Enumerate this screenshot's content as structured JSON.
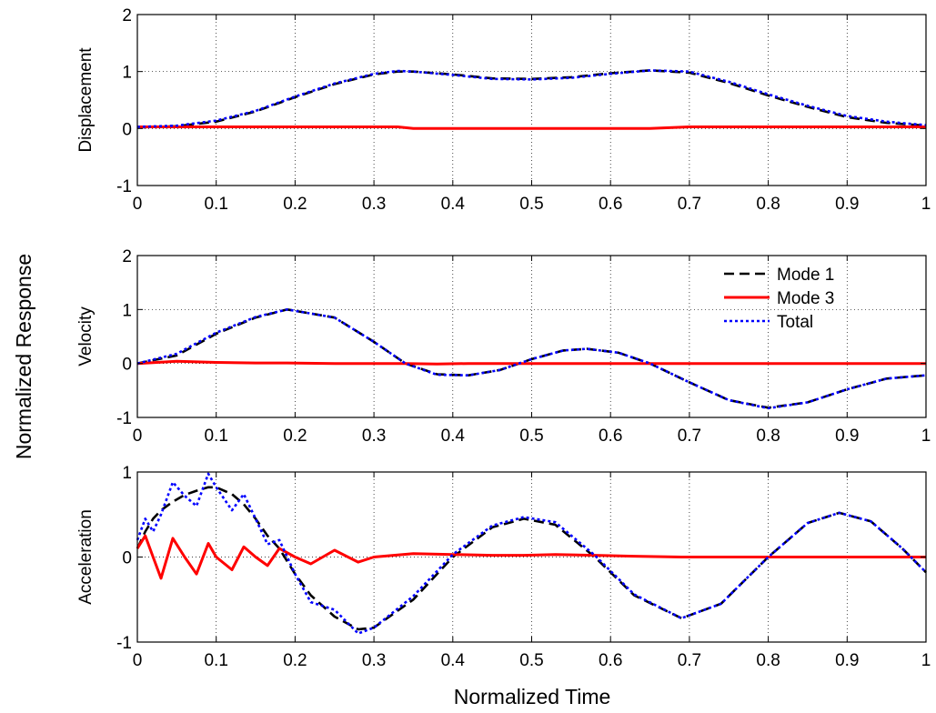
{
  "figure": {
    "ylabel": "Normalized Response",
    "xlabel": "Normalized Time"
  },
  "legend": {
    "location": "top-right of Velocity panel",
    "entries": [
      {
        "label": "Mode 1",
        "color": "#000000",
        "style": "dashed"
      },
      {
        "label": "Mode 3",
        "color": "#ff0000",
        "style": "solid"
      },
      {
        "label": "Total",
        "color": "#0000ff",
        "style": "dotted"
      }
    ]
  },
  "chart_data": [
    {
      "type": "line",
      "ylabel": "Displacement",
      "xlim": [
        0,
        1
      ],
      "ylim": [
        -1,
        2
      ],
      "xticks": [
        "0",
        "0.1",
        "0.2",
        "0.3",
        "0.4",
        "0.5",
        "0.6",
        "0.7",
        "0.8",
        "0.9",
        "1"
      ],
      "yticks": [
        "-1",
        "0",
        "1",
        "2"
      ],
      "grid": true,
      "x": [
        0,
        0.05,
        0.1,
        0.15,
        0.2,
        0.25,
        0.3,
        0.33,
        0.35,
        0.4,
        0.45,
        0.5,
        0.55,
        0.6,
        0.65,
        0.7,
        0.75,
        0.8,
        0.85,
        0.9,
        0.95,
        1
      ],
      "series": [
        {
          "name": "Mode 1",
          "color": "#000000",
          "style": "dashed",
          "values": [
            0.02,
            0.04,
            0.12,
            0.3,
            0.55,
            0.78,
            0.95,
            1.0,
            1.0,
            0.95,
            0.88,
            0.87,
            0.9,
            0.97,
            1.02,
            0.98,
            0.8,
            0.58,
            0.38,
            0.2,
            0.1,
            0.05
          ]
        },
        {
          "name": "Mode 3",
          "color": "#ff0000",
          "style": "solid",
          "values": [
            0.03,
            0.03,
            0.03,
            0.03,
            0.03,
            0.03,
            0.03,
            0.03,
            0.0,
            0.0,
            0.0,
            0.0,
            0.0,
            0.0,
            0.0,
            0.03,
            0.03,
            0.03,
            0.03,
            0.03,
            0.03,
            0.03
          ]
        },
        {
          "name": "Total",
          "color": "#0000ff",
          "style": "dotted",
          "values": [
            0.03,
            0.05,
            0.14,
            0.31,
            0.56,
            0.79,
            0.96,
            1.01,
            1.0,
            0.94,
            0.87,
            0.86,
            0.89,
            0.96,
            1.02,
            1.0,
            0.82,
            0.6,
            0.4,
            0.22,
            0.12,
            0.06
          ]
        }
      ]
    },
    {
      "type": "line",
      "ylabel": "Velocity",
      "xlim": [
        0,
        1
      ],
      "ylim": [
        -1,
        2
      ],
      "xticks": [
        "0",
        "0.1",
        "0.2",
        "0.3",
        "0.4",
        "0.5",
        "0.6",
        "0.7",
        "0.8",
        "0.9",
        "1"
      ],
      "yticks": [
        "-1",
        "0",
        "1",
        "2"
      ],
      "grid": true,
      "x": [
        0,
        0.05,
        0.1,
        0.15,
        0.19,
        0.25,
        0.3,
        0.34,
        0.38,
        0.42,
        0.46,
        0.5,
        0.54,
        0.57,
        0.61,
        0.65,
        0.7,
        0.75,
        0.8,
        0.85,
        0.9,
        0.95,
        1
      ],
      "series": [
        {
          "name": "Mode 1",
          "color": "#000000",
          "style": "dashed",
          "values": [
            0.0,
            0.15,
            0.55,
            0.85,
            1.0,
            0.85,
            0.4,
            0.0,
            -0.2,
            -0.22,
            -0.12,
            0.08,
            0.24,
            0.27,
            0.2,
            0.0,
            -0.35,
            -0.68,
            -0.82,
            -0.72,
            -0.48,
            -0.28,
            -0.22
          ]
        },
        {
          "name": "Mode 3",
          "color": "#ff0000",
          "style": "solid",
          "values": [
            0.0,
            0.04,
            0.02,
            0.01,
            0.01,
            0.0,
            0.0,
            0.0,
            -0.01,
            0.0,
            0.0,
            0.0,
            0.0,
            0.0,
            0.0,
            0.0,
            0.0,
            0.0,
            0.0,
            0.0,
            0.0,
            0.0,
            0.0
          ]
        },
        {
          "name": "Total",
          "color": "#0000ff",
          "style": "dotted",
          "values": [
            0.0,
            0.18,
            0.57,
            0.86,
            1.0,
            0.85,
            0.4,
            0.0,
            -0.21,
            -0.22,
            -0.12,
            0.08,
            0.24,
            0.27,
            0.2,
            0.0,
            -0.35,
            -0.68,
            -0.83,
            -0.72,
            -0.48,
            -0.28,
            -0.22
          ]
        }
      ]
    },
    {
      "type": "line",
      "ylabel": "Acceleration",
      "xlim": [
        0,
        1
      ],
      "ylim": [
        -1,
        1
      ],
      "xticks": [
        "0",
        "0.1",
        "0.2",
        "0.3",
        "0.4",
        "0.5",
        "0.6",
        "0.7",
        "0.8",
        "0.9",
        "1"
      ],
      "yticks": [
        "-1",
        "0",
        "1"
      ],
      "grid": true,
      "x": [
        0,
        0.01,
        0.02,
        0.03,
        0.045,
        0.06,
        0.075,
        0.09,
        0.1,
        0.12,
        0.135,
        0.15,
        0.165,
        0.18,
        0.2,
        0.22,
        0.25,
        0.28,
        0.3,
        0.35,
        0.4,
        0.45,
        0.49,
        0.53,
        0.58,
        0.63,
        0.69,
        0.74,
        0.8,
        0.85,
        0.89,
        0.93,
        0.97,
        1
      ],
      "series": [
        {
          "name": "Mode 1",
          "color": "#000000",
          "style": "dashed",
          "values": [
            0.1,
            0.3,
            0.45,
            0.55,
            0.65,
            0.73,
            0.78,
            0.82,
            0.82,
            0.74,
            0.62,
            0.45,
            0.25,
            0.1,
            -0.2,
            -0.45,
            -0.7,
            -0.85,
            -0.83,
            -0.5,
            0.0,
            0.35,
            0.45,
            0.38,
            0.0,
            -0.45,
            -0.72,
            -0.55,
            0.0,
            0.4,
            0.52,
            0.42,
            0.1,
            -0.18
          ]
        },
        {
          "name": "Mode 3",
          "color": "#ff0000",
          "style": "solid",
          "values": [
            0.1,
            0.25,
            0.0,
            -0.25,
            0.22,
            0.0,
            -0.2,
            0.16,
            0.0,
            -0.15,
            0.12,
            0.0,
            -0.1,
            0.1,
            0.0,
            -0.08,
            0.08,
            -0.06,
            0.0,
            0.04,
            0.03,
            0.02,
            0.02,
            0.03,
            0.02,
            0.01,
            0.0,
            0.0,
            0.0,
            0.0,
            0.0,
            0.0,
            0.0,
            0.0
          ]
        },
        {
          "name": "Total",
          "color": "#0000ff",
          "style": "dotted",
          "values": [
            0.2,
            0.45,
            0.3,
            0.5,
            0.88,
            0.72,
            0.6,
            0.98,
            0.82,
            0.55,
            0.74,
            0.45,
            0.15,
            0.2,
            -0.2,
            -0.53,
            -0.62,
            -0.9,
            -0.83,
            -0.46,
            0.03,
            0.37,
            0.47,
            0.41,
            0.02,
            -0.44,
            -0.72,
            -0.55,
            0.0,
            0.4,
            0.52,
            0.42,
            0.1,
            -0.18
          ]
        }
      ]
    }
  ]
}
